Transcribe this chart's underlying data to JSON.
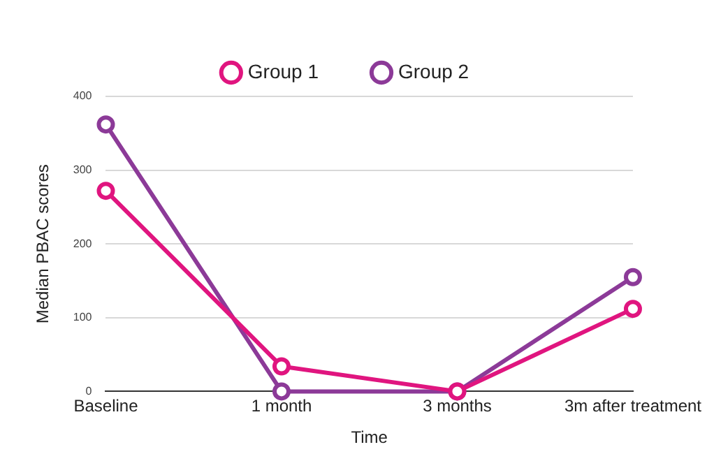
{
  "chart_data": {
    "type": "line",
    "xlabel": "Time",
    "ylabel": "Median PBAC scores",
    "categories": [
      "Baseline",
      "1 month",
      "3 months",
      "3m after treatment"
    ],
    "series": [
      {
        "name": "Group 1",
        "color": "#e0157f",
        "values": [
          272,
          34,
          0,
          112
        ]
      },
      {
        "name": "Group 2",
        "color": "#8c3a98",
        "values": [
          362,
          0,
          0,
          155
        ]
      }
    ],
    "ylim": [
      0,
      400
    ],
    "yticks": [
      0,
      100,
      200,
      300,
      400
    ],
    "grid": "y",
    "legend": "top",
    "marker": "circle",
    "line_style": "solid"
  }
}
